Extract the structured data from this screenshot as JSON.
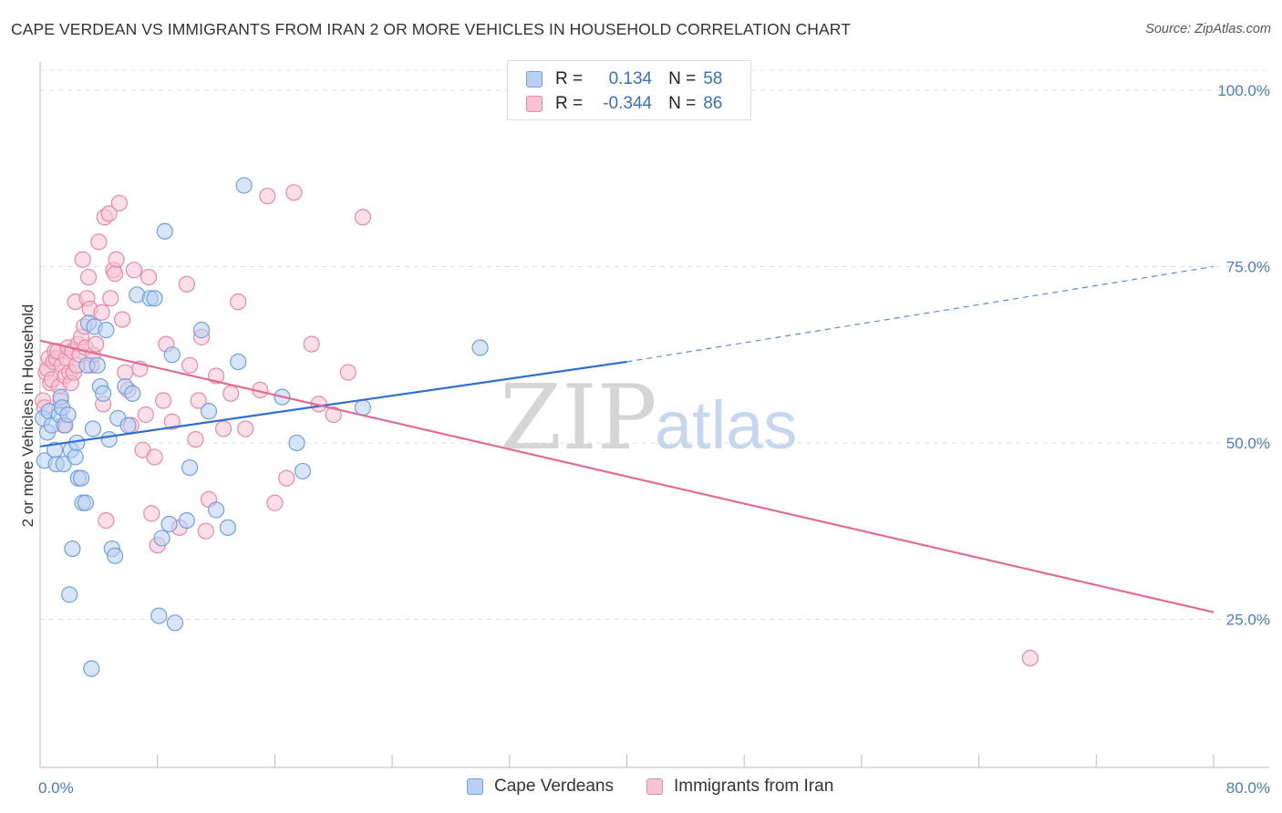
{
  "title": "CAPE VERDEAN VS IMMIGRANTS FROM IRAN 2 OR MORE VEHICLES IN HOUSEHOLD CORRELATION CHART",
  "source": "Source: ZipAtlas.com",
  "legend": {
    "rows": [
      {
        "r_label": "R =",
        "r_value": "0.134",
        "n_label": "N =",
        "n_value": "58"
      },
      {
        "r_label": "R =",
        "r_value": "-0.344",
        "n_label": "N =",
        "n_value": "86"
      }
    ]
  },
  "watermark": {
    "zip": "ZIP",
    "atlas": "atlas"
  },
  "chart_data": {
    "type": "scatter",
    "title": "CAPE VERDEAN VS IMMIGRANTS FROM IRAN 2 OR MORE VEHICLES IN HOUSEHOLD CORRELATION CHART",
    "xlabel": "",
    "ylabel": "2 or more Vehicles in Household",
    "xlim": [
      0,
      80
    ],
    "ylim": [
      4,
      104
    ],
    "x_tick_labels": [
      "0.0%",
      "80.0%"
    ],
    "y_ticks": [
      25,
      50,
      75,
      100
    ],
    "y_tick_labels": [
      "25.0%",
      "50.0%",
      "75.0%",
      "100.0%"
    ],
    "grid": true,
    "legend_position": "top-center",
    "colors": {
      "cape_verdeans": "#6fa0e0",
      "cape_verdeans_fill": "#b8d0f2",
      "iran": "#e889a8",
      "iran_fill": "#f7c3d3",
      "blue_line": "#2f6fcf",
      "pink_line": "#e06c96"
    },
    "series": [
      {
        "name": "Cape Verdeans",
        "color": "#6fa0e0",
        "points": [
          [
            0.2,
            53.5
          ],
          [
            0.3,
            47.5
          ],
          [
            0.5,
            51.5
          ],
          [
            0.6,
            54.5
          ],
          [
            0.8,
            52.5
          ],
          [
            1.0,
            49.0
          ],
          [
            1.1,
            47.0
          ],
          [
            1.3,
            54.0
          ],
          [
            1.4,
            56.5
          ],
          [
            1.5,
            55.0
          ],
          [
            1.6,
            47.0
          ],
          [
            1.7,
            52.5
          ],
          [
            1.9,
            54.0
          ],
          [
            2.0,
            28.5
          ],
          [
            2.1,
            49.0
          ],
          [
            2.2,
            35.0
          ],
          [
            2.4,
            48.0
          ],
          [
            2.5,
            50.0
          ],
          [
            2.6,
            45.0
          ],
          [
            2.8,
            45.0
          ],
          [
            2.9,
            41.5
          ],
          [
            3.1,
            41.5
          ],
          [
            3.2,
            61.0
          ],
          [
            3.3,
            67.0
          ],
          [
            3.5,
            18.0
          ],
          [
            3.6,
            52.0
          ],
          [
            3.7,
            66.5
          ],
          [
            3.9,
            61.0
          ],
          [
            4.1,
            58.0
          ],
          [
            4.3,
            57.0
          ],
          [
            4.5,
            66.0
          ],
          [
            4.7,
            50.5
          ],
          [
            4.9,
            35.0
          ],
          [
            5.1,
            34.0
          ],
          [
            5.3,
            53.5
          ],
          [
            5.8,
            58.0
          ],
          [
            6.0,
            52.5
          ],
          [
            6.3,
            57.0
          ],
          [
            6.6,
            71.0
          ],
          [
            7.5,
            70.5
          ],
          [
            7.8,
            70.5
          ],
          [
            8.1,
            25.5
          ],
          [
            8.3,
            36.5
          ],
          [
            8.5,
            80.0
          ],
          [
            8.8,
            38.5
          ],
          [
            9.0,
            62.5
          ],
          [
            9.2,
            24.5
          ],
          [
            10.0,
            39.0
          ],
          [
            10.2,
            46.5
          ],
          [
            11.0,
            66.0
          ],
          [
            11.5,
            54.5
          ],
          [
            12.0,
            40.5
          ],
          [
            12.8,
            38.0
          ],
          [
            13.5,
            61.5
          ],
          [
            13.9,
            86.5
          ],
          [
            16.5,
            56.5
          ],
          [
            17.5,
            50.0
          ],
          [
            17.9,
            46.0
          ],
          [
            22.0,
            55.0
          ],
          [
            30.0,
            63.5
          ]
        ]
      },
      {
        "name": "Immigrants from Iran",
        "color": "#e889a8",
        "points": [
          [
            0.2,
            56.0
          ],
          [
            0.3,
            55.0
          ],
          [
            0.4,
            60.0
          ],
          [
            0.5,
            60.5
          ],
          [
            0.6,
            62.0
          ],
          [
            0.7,
            58.5
          ],
          [
            0.8,
            59.0
          ],
          [
            0.9,
            61.5
          ],
          [
            1.0,
            63.0
          ],
          [
            1.1,
            62.0
          ],
          [
            1.2,
            63.0
          ],
          [
            1.3,
            58.0
          ],
          [
            1.4,
            56.0
          ],
          [
            1.5,
            61.0
          ],
          [
            1.6,
            52.5
          ],
          [
            1.7,
            59.5
          ],
          [
            1.8,
            62.0
          ],
          [
            1.9,
            63.5
          ],
          [
            2.0,
            60.0
          ],
          [
            2.1,
            58.5
          ],
          [
            2.2,
            63.0
          ],
          [
            2.3,
            60.0
          ],
          [
            2.4,
            70.0
          ],
          [
            2.5,
            61.0
          ],
          [
            2.6,
            64.0
          ],
          [
            2.7,
            62.5
          ],
          [
            2.8,
            65.0
          ],
          [
            2.9,
            76.0
          ],
          [
            3.0,
            66.5
          ],
          [
            3.1,
            63.5
          ],
          [
            3.2,
            70.5
          ],
          [
            3.3,
            73.5
          ],
          [
            3.4,
            69.0
          ],
          [
            3.5,
            61.0
          ],
          [
            3.6,
            62.5
          ],
          [
            3.8,
            64.0
          ],
          [
            4.0,
            78.5
          ],
          [
            4.2,
            68.5
          ],
          [
            4.3,
            55.5
          ],
          [
            4.4,
            82.0
          ],
          [
            4.5,
            39.0
          ],
          [
            4.7,
            82.5
          ],
          [
            4.8,
            70.5
          ],
          [
            5.0,
            74.5
          ],
          [
            5.1,
            74.0
          ],
          [
            5.2,
            76.0
          ],
          [
            5.4,
            84.0
          ],
          [
            5.6,
            67.5
          ],
          [
            5.8,
            60.0
          ],
          [
            6.0,
            57.5
          ],
          [
            6.2,
            52.5
          ],
          [
            6.4,
            74.5
          ],
          [
            6.8,
            60.5
          ],
          [
            7.0,
            49.0
          ],
          [
            7.2,
            54.0
          ],
          [
            7.4,
            73.5
          ],
          [
            7.6,
            40.0
          ],
          [
            7.8,
            48.0
          ],
          [
            8.0,
            35.5
          ],
          [
            8.4,
            56.0
          ],
          [
            8.6,
            64.0
          ],
          [
            9.0,
            53.0
          ],
          [
            9.5,
            38.0
          ],
          [
            10.0,
            72.5
          ],
          [
            10.2,
            61.0
          ],
          [
            10.6,
            50.5
          ],
          [
            10.8,
            56.0
          ],
          [
            11.0,
            65.0
          ],
          [
            11.3,
            37.5
          ],
          [
            11.5,
            42.0
          ],
          [
            12.0,
            59.5
          ],
          [
            12.5,
            52.0
          ],
          [
            13.0,
            57.0
          ],
          [
            13.5,
            70.0
          ],
          [
            14.0,
            52.0
          ],
          [
            15.0,
            57.5
          ],
          [
            15.5,
            85.0
          ],
          [
            16.0,
            41.5
          ],
          [
            16.8,
            45.0
          ],
          [
            17.3,
            85.5
          ],
          [
            18.5,
            64.0
          ],
          [
            19.0,
            55.5
          ],
          [
            20.0,
            54.0
          ],
          [
            21.0,
            60.0
          ],
          [
            22.0,
            82.0
          ],
          [
            67.5,
            19.5
          ]
        ]
      }
    ],
    "trend_lines": [
      {
        "name": "Cape Verdeans",
        "x0": 0,
        "y0": 49.5,
        "x1": 40,
        "y1": 61.5,
        "dashed_to_x": 80,
        "dashed_to_y": 75.0
      },
      {
        "name": "Immigrants from Iran",
        "x0": 0,
        "y0": 64.5,
        "x1": 80,
        "y1": 26.0
      }
    ]
  }
}
